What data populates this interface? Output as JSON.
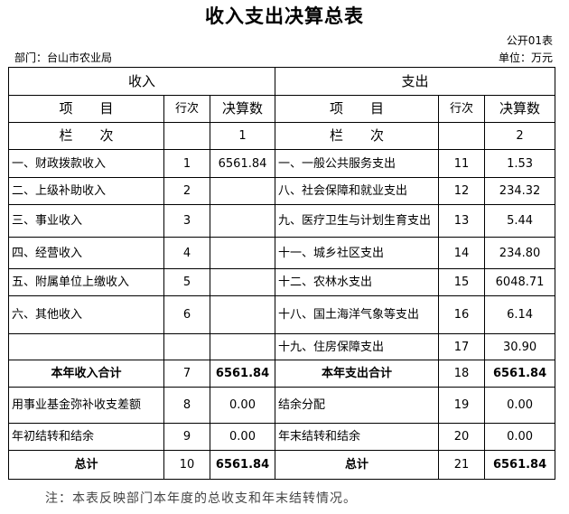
{
  "title": "收入支出决算总表",
  "form_no": "公开01表",
  "department": "部门：台山市农业局",
  "unit": "单位：万元",
  "headers": {
    "income": "收入",
    "expense": "支出",
    "item": "项　　目",
    "row_no": "行次",
    "amount": "决算数",
    "column_label": "栏　　次",
    "col1": "1",
    "col2": "2"
  },
  "rows": [
    {
      "in_item": "一、财政拨款收入",
      "in_no": "1",
      "in_amt": "6561.84",
      "ex_item": "一、一般公共服务支出",
      "ex_no": "11",
      "ex_amt": "1.53"
    },
    {
      "in_item": "二、上级补助收入",
      "in_no": "2",
      "in_amt": "",
      "ex_item": "八、社会保障和就业支出",
      "ex_no": "12",
      "ex_amt": "234.32"
    },
    {
      "in_item": "三、事业收入",
      "in_no": "3",
      "in_amt": "",
      "ex_item": "九、医疗卫生与计划生育支出",
      "ex_no": "13",
      "ex_amt": "5.44"
    },
    {
      "in_item": "四、经营收入",
      "in_no": "4",
      "in_amt": "",
      "ex_item": "十一、城乡社区支出",
      "ex_no": "14",
      "ex_amt": "234.80"
    },
    {
      "in_item": "五、附属单位上缴收入",
      "in_no": "5",
      "in_amt": "",
      "ex_item": "十二、农林水支出",
      "ex_no": "15",
      "ex_amt": "6048.71"
    },
    {
      "in_item": "六、其他收入",
      "in_no": "6",
      "in_amt": "",
      "ex_item": "十八、国土海洋气象等支出",
      "ex_no": "16",
      "ex_amt": "6.14"
    },
    {
      "in_item": "",
      "in_no": "",
      "in_amt": "",
      "ex_item": "十九、住房保障支出",
      "ex_no": "17",
      "ex_amt": "30.90"
    },
    {
      "in_item": "本年收入合计",
      "in_no": "7",
      "in_amt": "6561.84",
      "ex_item": "本年支出合计",
      "ex_no": "18",
      "ex_amt": "6561.84"
    },
    {
      "in_item": "用事业基金弥补收支差额",
      "in_no": "8",
      "in_amt": "0.00",
      "ex_item": "结余分配",
      "ex_no": "19",
      "ex_amt": "0.00"
    },
    {
      "in_item": "年初结转和结余",
      "in_no": "9",
      "in_amt": "0.00",
      "ex_item": "年末结转和结余",
      "ex_no": "20",
      "ex_amt": "0.00"
    },
    {
      "in_item": "总计",
      "in_no": "10",
      "in_amt": "6561.84",
      "ex_item": "总计",
      "ex_no": "21",
      "ex_amt": "6561.84"
    }
  ],
  "note": "注：本表反映部门本年度的总收支和年末结转情况。"
}
